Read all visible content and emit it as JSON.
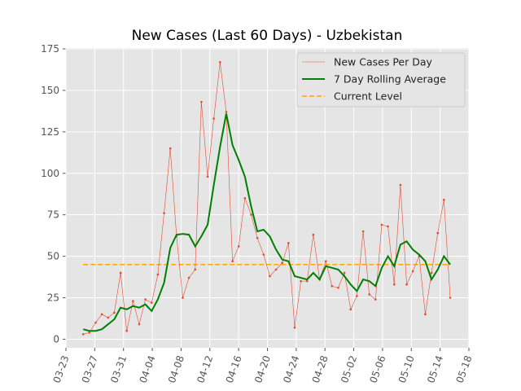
{
  "chart_data": {
    "type": "line",
    "title": "New Cases (Last 60 Days) - Uzbekistan",
    "x": [
      2.4,
      3.26,
      4.13,
      4.99,
      5.86,
      6.72,
      7.59,
      8.45,
      9.32,
      10.18,
      11.04,
      11.91,
      12.77,
      13.64,
      14.5,
      15.37,
      16.23,
      17.09,
      17.96,
      18.82,
      19.69,
      20.55,
      21.42,
      22.28,
      23.15,
      24.01,
      24.87,
      25.74,
      26.6,
      27.47,
      28.33,
      29.2,
      30.06,
      30.92,
      31.79,
      32.65,
      33.52,
      34.38,
      35.25,
      36.11,
      36.97,
      37.84,
      38.7,
      39.57,
      40.43,
      41.3,
      42.16,
      43.02,
      43.89,
      44.75,
      45.62,
      46.48,
      47.35,
      48.21,
      49.08,
      49.94,
      50.8,
      51.67,
      52.53,
      53.4
    ],
    "series": [
      {
        "name": "New Cases Per Day",
        "color": "#e24a33",
        "values": [
          3,
          4,
          10,
          15,
          13,
          16,
          40,
          5,
          23,
          9,
          24,
          22,
          39,
          76,
          115,
          62,
          25,
          37,
          42,
          143,
          98,
          133,
          167,
          137,
          47,
          56,
          85,
          75,
          61,
          51,
          38,
          42,
          46,
          58,
          7,
          35,
          35,
          63,
          36,
          47,
          32,
          31,
          40,
          18,
          26,
          65,
          27,
          24,
          69,
          68,
          33,
          93,
          33,
          41,
          50,
          15,
          40,
          64,
          84,
          25
        ]
      },
      {
        "name": "7 Day Rolling Average",
        "color": "green",
        "values": [
          6,
          5,
          5,
          6,
          9,
          12,
          19,
          18,
          20,
          19,
          21,
          17,
          24,
          34,
          55,
          63,
          63.5,
          63,
          56,
          62,
          69,
          93,
          116,
          136,
          117,
          108,
          98,
          80,
          65,
          66,
          62,
          54,
          48,
          47,
          38,
          37,
          36,
          40,
          36,
          44,
          43,
          42,
          38,
          33,
          29,
          36,
          35,
          32,
          43,
          50,
          44,
          57,
          59,
          54,
          51,
          47,
          36,
          42,
          50,
          45
        ]
      }
    ],
    "reference_line": {
      "name": "Current Level",
      "value": 45,
      "color": "orange"
    },
    "xlim": [
      0,
      56
    ],
    "xticks": [
      {
        "value": 0,
        "label": "03-23"
      },
      {
        "value": 4,
        "label": "03-27"
      },
      {
        "value": 8,
        "label": "03-31"
      },
      {
        "value": 12,
        "label": "04-04"
      },
      {
        "value": 16,
        "label": "04-08"
      },
      {
        "value": 20,
        "label": "04-12"
      },
      {
        "value": 24,
        "label": "04-16"
      },
      {
        "value": 28,
        "label": "04-20"
      },
      {
        "value": 32,
        "label": "04-24"
      },
      {
        "value": 36,
        "label": "04-28"
      },
      {
        "value": 40,
        "label": "05-02"
      },
      {
        "value": 44,
        "label": "05-06"
      },
      {
        "value": 48,
        "label": "05-10"
      },
      {
        "value": 52,
        "label": "05-14"
      },
      {
        "value": 56,
        "label": "05-18"
      }
    ],
    "ylim": [
      -5.2,
      175.5
    ],
    "yticks": [
      0,
      25,
      50,
      75,
      100,
      125,
      150,
      175
    ],
    "grid": true,
    "legend": "upper right"
  }
}
